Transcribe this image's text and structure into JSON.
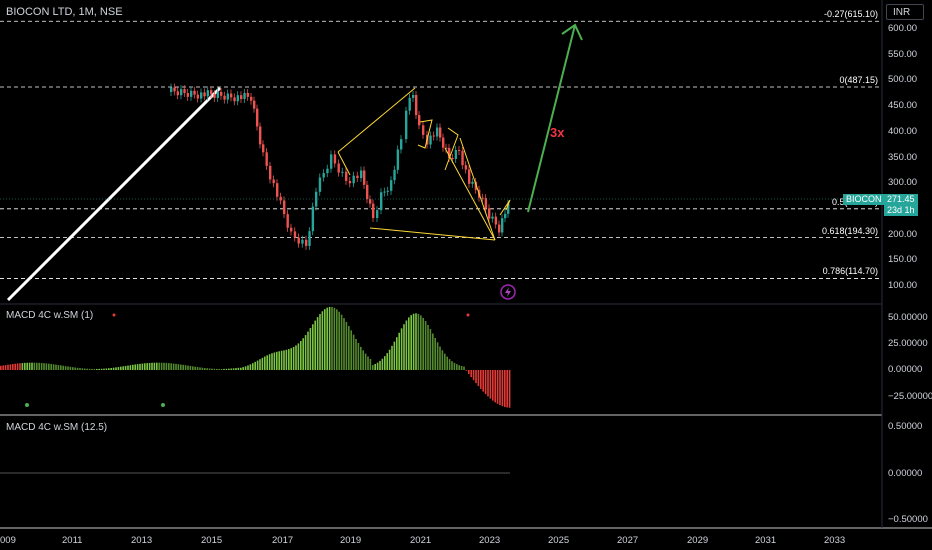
{
  "header": {
    "symbol_title": "BIOCON LTD, 1M, NSE",
    "currency_button": "INR"
  },
  "price_axis": [
    "600.00",
    "550.00",
    "500.00",
    "450.00",
    "400.00",
    "350.00",
    "300.00",
    "250.00",
    "200.00",
    "150.00",
    "100.00"
  ],
  "fib_levels": [
    {
      "label": "-0.27(615.10)",
      "price": 615.1
    },
    {
      "label": "0(487.15)",
      "price": 487.15
    },
    {
      "label": "0.5(250.20)",
      "price": 250.2
    },
    {
      "label": "0.618(194.30)",
      "price": 194.3
    },
    {
      "label": "0.786(114.70)",
      "price": 114.7
    }
  ],
  "price_tag": {
    "symbol": "BIOCON",
    "price": "271.45",
    "countdown": "23d 1h"
  },
  "annotation": {
    "multiplier": "3x"
  },
  "macd_panel_1": {
    "title": "MACD 4C w.SM (1)",
    "axis": [
      "50.00000",
      "25.00000",
      "0.00000",
      "−25.00000"
    ]
  },
  "macd_panel_2": {
    "title": "MACD 4C w.SM (12.5)",
    "axis": [
      "0.50000",
      "0.00000",
      "−0.50000"
    ]
  },
  "time_axis": [
    "009",
    "2011",
    "2013",
    "2015",
    "2017",
    "2019",
    "2021",
    "2023",
    "2025",
    "2027",
    "2029",
    "2031",
    "2033"
  ],
  "colors": {
    "up": "#26a69a",
    "down": "#ef5350",
    "macd_up": "#7cc644",
    "macd_down": "#e53935",
    "fib": "#ffffff",
    "arrow": "#4caf50",
    "pattern": "#fdd835"
  }
}
